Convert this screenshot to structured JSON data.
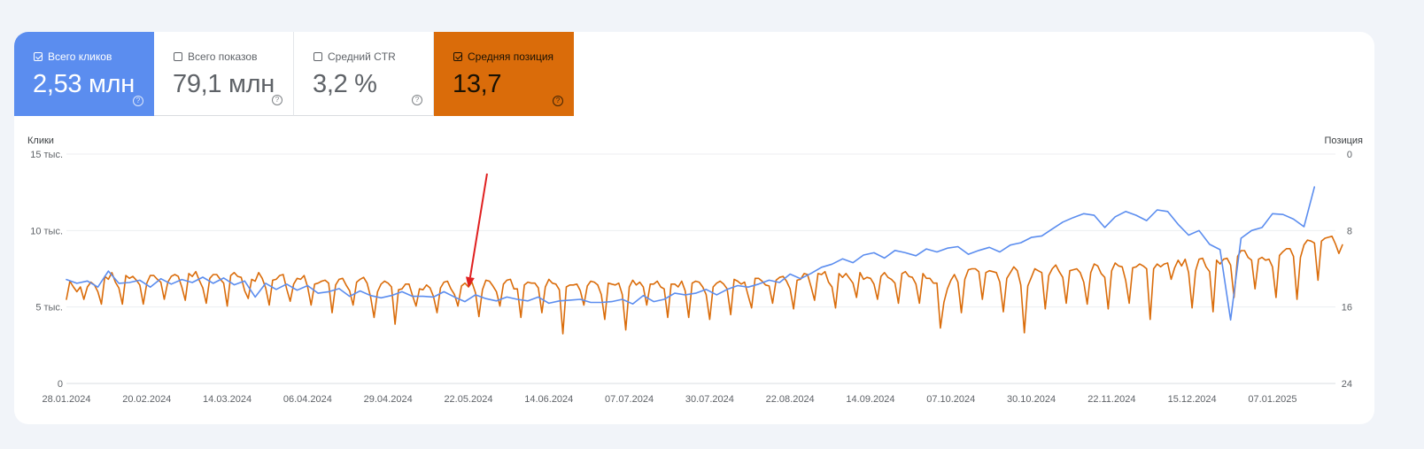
{
  "metrics": [
    {
      "label": "Всего кликов",
      "value": "2,53 млн",
      "checked": true,
      "color": "#5b8def"
    },
    {
      "label": "Всего показов",
      "value": "79,1 млн",
      "checked": false
    },
    {
      "label": "Средний CTR",
      "value": "3,2 %",
      "checked": false
    },
    {
      "label": "Средняя позиция",
      "value": "13,7",
      "checked": true,
      "color": "#da6c0a"
    }
  ],
  "chart_data": {
    "type": "line",
    "y_left": {
      "label": "Клики",
      "ticks": [
        "0",
        "5 тыс.",
        "10 тыс.",
        "15 тыс."
      ],
      "range": [
        0,
        15000
      ]
    },
    "y_right": {
      "label": "Позиция",
      "ticks": [
        "0",
        "8",
        "16",
        "24"
      ],
      "range": [
        0,
        24
      ],
      "inverted": true
    },
    "x_tick_labels": [
      "28.01.2024",
      "20.02.2024",
      "14.03.2024",
      "06.04.2024",
      "29.04.2024",
      "22.05.2024",
      "14.06.2024",
      "07.07.2024",
      "30.07.2024",
      "22.08.2024",
      "14.09.2024",
      "07.10.2024",
      "30.10.2024",
      "22.11.2024",
      "15.12.2024",
      "07.01.2025"
    ],
    "x_range": [
      "28.01.2024",
      "25.01.2025"
    ],
    "grid": true,
    "annotation": {
      "type": "arrow",
      "color": "#e02020",
      "points_to": "22.05.2024"
    },
    "series": [
      {
        "axis": "left",
        "color": "#5b8def",
        "x_start": "28.01.2024",
        "x_step_days": 3,
        "values": [
          6800,
          6550,
          6700,
          6300,
          7350,
          6550,
          6600,
          6750,
          6300,
          6850,
          6500,
          6800,
          6600,
          6950,
          6550,
          6900,
          6450,
          6700,
          5650,
          6550,
          6150,
          6500,
          6100,
          6400,
          5900,
          6000,
          6200,
          5700,
          6050,
          5750,
          5600,
          5750,
          6000,
          5700,
          5700,
          5650,
          6000,
          5650,
          5350,
          5800,
          5550,
          5400,
          5650,
          5500,
          5400,
          5650,
          5250,
          5400,
          5450,
          5500,
          5300,
          5300,
          5350,
          5500,
          5200,
          5750,
          5350,
          5500,
          5900,
          5800,
          5900,
          6150,
          5800,
          6150,
          6400,
          6300,
          6500,
          6750,
          6600,
          7150,
          6850,
          7200,
          7600,
          7800,
          8150,
          7900,
          8400,
          8550,
          8200,
          8700,
          8550,
          8350,
          8800,
          8600,
          8850,
          8950,
          8450,
          8700,
          8900,
          8600,
          9050,
          9200,
          9550,
          9650,
          10100,
          10550,
          10850,
          11100,
          11000,
          10200,
          10900,
          11250,
          11000,
          10650,
          11350,
          11250,
          10400,
          9700,
          10000,
          9100,
          8750,
          4150,
          9500,
          10000,
          10200,
          11100,
          11050,
          10750,
          10250,
          12850
        ]
      },
      {
        "axis": "right",
        "color": "#da6c0a",
        "x_start": "28.01.2024",
        "x_step_days": 1,
        "dip_period_days": 7,
        "values": [
          15.2,
          13.3,
          13.9,
          14.4,
          13.9,
          15.2,
          13.9,
          13.4,
          13.7,
          14.4,
          15.7,
          12.8,
          13.1,
          12.4,
          13.4,
          14.0,
          15.7,
          12.7,
          13.0,
          12.8,
          13.2,
          13.7,
          15.7,
          13.5,
          12.7,
          12.7,
          13.1,
          13.4,
          15.2,
          13.4,
          12.8,
          12.6,
          12.8,
          13.9,
          15.3,
          12.5,
          12.8,
          12.3,
          13.2,
          14.0,
          15.6,
          13.0,
          12.6,
          12.6,
          13.1,
          13.5,
          15.9,
          12.7,
          12.4,
          12.8,
          12.9,
          14.3,
          15.1,
          13.1,
          13.3,
          12.4,
          13.0,
          14.0,
          15.8,
          13.2,
          13.1,
          12.7,
          12.6,
          14.1,
          15.4,
          13.6,
          13.0,
          13.1,
          12.7,
          13.9,
          15.8,
          13.6,
          13.5,
          13.3,
          13.2,
          13.5,
          16.6,
          13.7,
          13.1,
          13.0,
          13.7,
          14.3,
          15.8,
          13.4,
          13.1,
          12.9,
          13.5,
          14.9,
          17.1,
          14.4,
          13.6,
          13.3,
          13.5,
          13.9,
          17.8,
          14.2,
          14.1,
          13.6,
          13.6,
          14.8,
          15.9,
          14.1,
          14.2,
          13.7,
          14.0,
          14.9,
          16.6,
          14.0,
          13.4,
          13.3,
          14.1,
          14.7,
          15.9,
          13.8,
          13.5,
          13.9,
          13.4,
          14.5,
          17.0,
          14.2,
          13.2,
          13.3,
          13.8,
          14.4,
          15.9,
          13.6,
          13.2,
          13.1,
          14.1,
          14.1,
          17.1,
          13.7,
          13.4,
          13.5,
          13.5,
          14.0,
          16.6,
          13.9,
          13.1,
          13.5,
          13.6,
          14.2,
          18.8,
          13.9,
          13.7,
          13.7,
          13.6,
          14.3,
          15.8,
          13.8,
          13.3,
          13.4,
          13.7,
          14.7,
          17.3,
          13.5,
          13.6,
          13.7,
          13.5,
          14.7,
          18.4,
          13.9,
          13.2,
          13.7,
          13.4,
          13.9,
          15.8,
          13.6,
          13.6,
          13.3,
          13.9,
          14.1,
          17.1,
          13.6,
          13.6,
          13.9,
          13.3,
          14.3,
          17.1,
          13.5,
          13.3,
          13.4,
          13.9,
          14.7,
          17.3,
          13.9,
          13.5,
          13.3,
          13.6,
          14.1,
          16.8,
          13.1,
          13.3,
          13.6,
          13.4,
          14.8,
          16.1,
          13.0,
          13.0,
          13.3,
          13.7,
          13.8,
          15.6,
          13.2,
          12.9,
          12.8,
          13.3,
          14.1,
          16.2,
          13.2,
          13.1,
          12.5,
          12.6,
          13.9,
          15.3,
          12.5,
          12.6,
          12.3,
          13.4,
          13.9,
          16.1,
          12.5,
          12.9,
          12.5,
          13.0,
          13.5,
          15.0,
          12.4,
          13.1,
          12.9,
          13.0,
          13.6,
          15.2,
          12.8,
          12.4,
          12.9,
          13.1,
          13.5,
          15.6,
          12.5,
          12.3,
          12.8,
          12.9,
          13.6,
          15.6,
          12.5,
          13.0,
          13.0,
          13.5,
          13.5,
          18.2,
          15.5,
          14.1,
          13.2,
          12.6,
          13.4,
          16.6,
          13.1,
          12.1,
          12.0,
          12.0,
          12.3,
          15.2,
          12.4,
          12.2,
          12.3,
          12.4,
          13.4,
          16.5,
          13.0,
          12.4,
          11.8,
          12.2,
          13.7,
          18.7,
          13.8,
          12.9,
          12.0,
          12.2,
          12.4,
          16.2,
          12.7,
          12.0,
          11.6,
          12.3,
          12.9,
          15.6,
          12.2,
          12.1,
          12.0,
          12.4,
          13.4,
          15.7,
          12.4,
          11.5,
          11.7,
          12.5,
          12.9,
          16.2,
          12.2,
          11.4,
          11.7,
          11.8,
          13.2,
          15.6,
          11.9,
          11.8,
          11.5,
          11.7,
          12.0,
          17.3,
          12.0,
          11.5,
          11.8,
          11.5,
          11.4,
          13.1,
          11.9,
          11.1,
          11.7,
          11.0,
          12.4,
          16.1,
          12.2,
          11.0,
          10.9,
          11.8,
          12.3,
          16.5,
          11.1,
          11.5,
          11.0,
          10.9,
          11.6,
          15.0,
          10.7,
          10.1,
          10.1,
          10.8,
          11.1,
          14.1,
          11.0,
          10.8,
          11.1,
          11.0,
          11.8,
          15.0,
          10.6,
          10.2,
          9.9,
          9.9,
          10.7,
          15.2,
          10.8,
          9.5,
          9.0,
          9.1,
          9.3,
          13.2,
          9.1,
          8.8,
          8.7,
          8.6,
          9.4,
          10.4,
          9.5
        ]
      }
    ]
  }
}
